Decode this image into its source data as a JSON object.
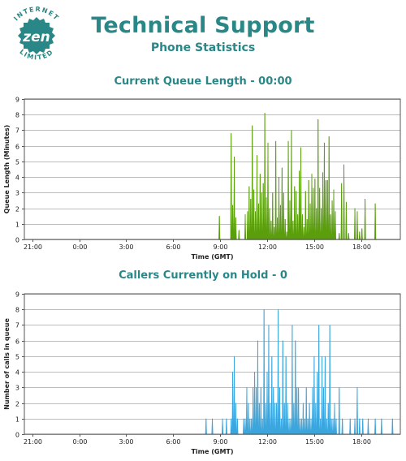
{
  "header": {
    "logo": {
      "ring_top": "INTERNET",
      "ring_bottom": "LIMITED",
      "brand": "zen",
      "color": "#2a8787"
    },
    "title": "Technical Support",
    "subtitle": "Phone Statistics"
  },
  "chart_data": [
    {
      "type": "area",
      "title": "Current Queue Length - 00:00",
      "xlabel": "Time (GMT)",
      "ylabel": "Queue Length (Minutes)",
      "ylim": [
        0,
        9
      ],
      "xlim": [
        -3.5,
        20.5
      ],
      "yticks": [
        0,
        1,
        2,
        3,
        4,
        5,
        6,
        7,
        8,
        9
      ],
      "xticks": [
        -3,
        0,
        3,
        6,
        9,
        12,
        15,
        18
      ],
      "xtick_labels": [
        "21:00",
        "0:00",
        "3:00",
        "6:00",
        "9:00",
        "12:00",
        "15:00",
        "18:00"
      ],
      "grid": true,
      "color": "#5a9e0c",
      "series": [
        {
          "x": [
            8.95,
            9.05,
            9.7,
            9.8,
            9.9,
            10.0,
            10.1,
            10.2,
            10.35,
            10.6,
            10.75,
            10.85,
            10.95,
            11.05,
            11.15,
            11.25,
            11.35,
            11.45,
            11.55,
            11.65,
            11.75,
            11.85,
            11.95,
            12.05,
            12.15,
            12.25,
            12.35,
            12.45,
            12.55,
            12.65,
            12.75,
            12.85,
            12.95,
            13.05,
            13.15,
            13.25,
            13.35,
            13.45,
            13.55,
            13.65,
            13.75,
            13.85,
            13.95,
            14.05,
            14.15,
            14.25,
            14.35,
            14.45,
            14.55,
            14.65,
            14.75,
            14.85,
            14.95,
            15.05,
            15.15,
            15.25,
            15.35,
            15.45,
            15.55,
            15.65,
            15.75,
            15.85,
            15.95,
            16.05,
            16.15,
            16.25,
            16.35,
            16.6,
            16.75,
            16.9,
            17.05,
            17.2,
            17.6,
            17.75,
            17.9,
            18.05,
            18.25,
            18.9,
            19.05
          ],
          "values": [
            1.5,
            0,
            6.8,
            2.2,
            5.3,
            1.4,
            0,
            0.6,
            0,
            1.6,
            1.8,
            3.4,
            2.6,
            7.3,
            3.2,
            1.8,
            5.4,
            2.3,
            4.2,
            3.0,
            3.6,
            8.1,
            2.7,
            6.2,
            2.0,
            1.2,
            3.0,
            0.8,
            6.3,
            1.4,
            4.0,
            2.2,
            4.6,
            3.0,
            1.3,
            0.5,
            6.3,
            2.5,
            7.0,
            1.2,
            3.4,
            3.1,
            1.6,
            4.4,
            5.9,
            1.6,
            0.8,
            3.1,
            1.3,
            3.8,
            2.3,
            4.2,
            3.3,
            3.9,
            2.0,
            7.7,
            3.3,
            2.0,
            4.3,
            6.2,
            3.8,
            3.8,
            6.6,
            1.6,
            2.5,
            3.2,
            1.8,
            0.4,
            3.6,
            4.8,
            2.4,
            0.4,
            2.0,
            1.8,
            0.5,
            0.7,
            2.6,
            2.3,
            0
          ]
        }
      ]
    },
    {
      "type": "area",
      "title": "Callers Currently on Hold - 0",
      "xlabel": "Time (GMT)",
      "ylabel": "Number of calls in queue",
      "ylim": [
        0,
        9
      ],
      "xlim": [
        -3.5,
        20.5
      ],
      "yticks": [
        0,
        1,
        2,
        3,
        4,
        5,
        6,
        7,
        8,
        9
      ],
      "xticks": [
        -3,
        0,
        3,
        6,
        9,
        12,
        15,
        18
      ],
      "xtick_labels": [
        "21:00",
        "0:00",
        "3:00",
        "6:00",
        "9:00",
        "12:00",
        "15:00",
        "18:00"
      ],
      "grid": true,
      "color": "#3aa6dd",
      "series": [
        {
          "x": [
            8.1,
            8.2,
            8.5,
            9.05,
            9.15,
            9.4,
            9.55,
            9.7,
            9.8,
            9.9,
            10.0,
            10.1,
            10.25,
            10.5,
            10.6,
            10.7,
            10.8,
            10.9,
            11.0,
            11.1,
            11.2,
            11.3,
            11.4,
            11.5,
            11.6,
            11.7,
            11.8,
            11.9,
            12.0,
            12.1,
            12.2,
            12.3,
            12.4,
            12.5,
            12.6,
            12.7,
            12.8,
            12.9,
            13.0,
            13.1,
            13.2,
            13.3,
            13.4,
            13.5,
            13.6,
            13.7,
            13.8,
            13.9,
            14.0,
            14.1,
            14.2,
            14.3,
            14.4,
            14.5,
            14.6,
            14.7,
            14.8,
            14.9,
            15.0,
            15.1,
            15.2,
            15.3,
            15.4,
            15.5,
            15.6,
            15.7,
            15.8,
            15.9,
            16.0,
            16.1,
            16.2,
            16.3,
            16.4,
            16.6,
            16.8,
            17.0,
            17.3,
            17.6,
            17.75,
            17.9,
            18.1,
            18.3,
            18.45,
            18.9,
            19.3,
            19.5,
            20.0
          ],
          "values": [
            1,
            0,
            1,
            0,
            1,
            1,
            0,
            1,
            4,
            5,
            2,
            1,
            0,
            1,
            1,
            3,
            2,
            1,
            1,
            3,
            4,
            3,
            6,
            2,
            3,
            1,
            8,
            2,
            4,
            7,
            2,
            5,
            3,
            2,
            2,
            8,
            3,
            1,
            6,
            2,
            5,
            2,
            1,
            1,
            7,
            2,
            6,
            3,
            3,
            1,
            1,
            2,
            1,
            3,
            1,
            2,
            1,
            3,
            5,
            2,
            4,
            7,
            1,
            5,
            3,
            5,
            1,
            2,
            7,
            1,
            1,
            2,
            1,
            3,
            1,
            0,
            1,
            1,
            3,
            1,
            1,
            0,
            1,
            1,
            1,
            0,
            1
          ]
        }
      ]
    }
  ]
}
